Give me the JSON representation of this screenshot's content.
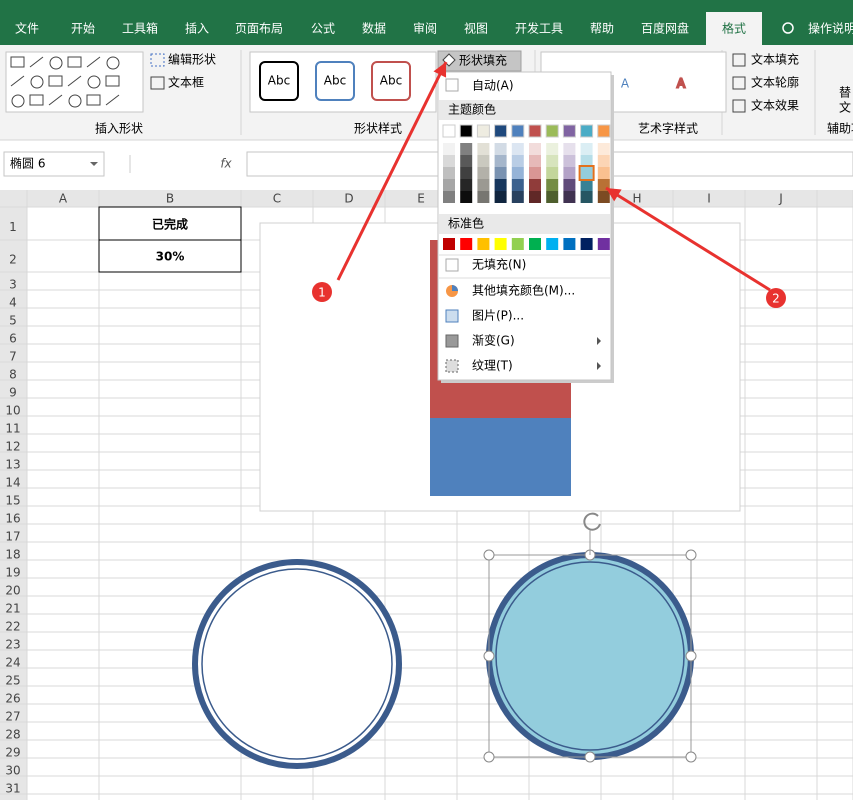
{
  "ribbon_tabs": [
    "文件",
    "开始",
    "工具箱",
    "插入",
    "页面布局",
    "公式",
    "数据",
    "审阅",
    "视图",
    "开发工具",
    "帮助",
    "百度网盘",
    "格式"
  ],
  "tell_me": "操作说明",
  "ribbon": {
    "insert_shapes": {
      "edit_shape": "编辑形状",
      "text_box": "文本框",
      "label": "插入形状"
    },
    "shape_styles": {
      "sample": "Abc",
      "fill_button": "形状填充",
      "label": "形状样式"
    },
    "wordart": {
      "sample": "A",
      "text_fill": "文本填充",
      "text_outline": "文本轮廓",
      "text_effects": "文本效果",
      "label": "艺术字样式"
    },
    "accessibility": {
      "alt_text_1": "替",
      "alt_text_2": "文",
      "label": "辅助功"
    }
  },
  "formula_bar": {
    "name_box": "椭圆 6",
    "fx": "fx"
  },
  "sheet": {
    "columns": [
      "A",
      "B",
      "C",
      "D",
      "E",
      "F",
      "G",
      "H",
      "I",
      "J"
    ],
    "rows": [
      1,
      2,
      3,
      4,
      5,
      6,
      7,
      8,
      9,
      10,
      11,
      12,
      13,
      14,
      15,
      16,
      17,
      18,
      19,
      20,
      21,
      22,
      23,
      24,
      25,
      26,
      27,
      28,
      29,
      30,
      31
    ],
    "cells": {
      "B1": "已完成",
      "B2": "30%"
    }
  },
  "fill_menu": {
    "automatic": "自动(A)",
    "theme_colors": "主题颜色",
    "theme_swatches": [
      "#ffffff",
      "#000000",
      "#eeece1",
      "#1f497d",
      "#4f81bd",
      "#c0504d",
      "#9bbb59",
      "#8064a2",
      "#4bacc6",
      "#f79646"
    ],
    "standard_colors": "标准色",
    "standard_swatches": [
      "#c00000",
      "#ff0000",
      "#ffc000",
      "#ffff00",
      "#92d050",
      "#00b050",
      "#00b0f0",
      "#0070c0",
      "#002060",
      "#7030a0"
    ],
    "items": [
      "无填充(N)",
      "其他填充颜色(M)...",
      "图片(P)...",
      "渐变(G)",
      "纹理(T)"
    ]
  },
  "callouts": [
    "1",
    "2"
  ]
}
